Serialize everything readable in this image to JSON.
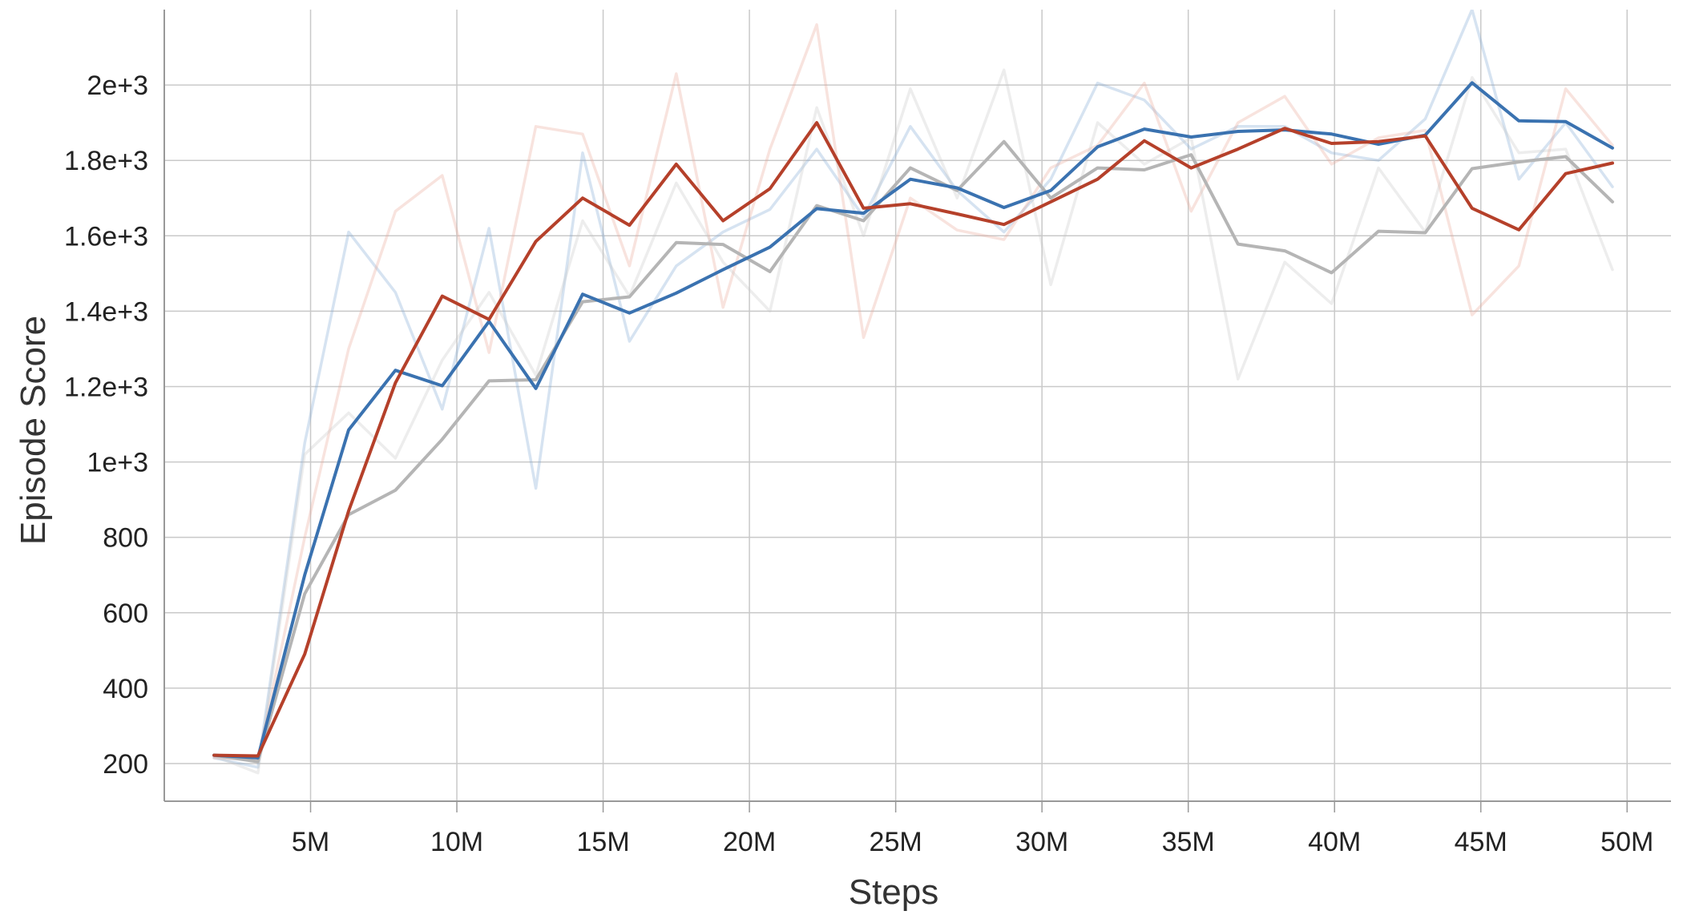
{
  "chart_data": {
    "type": "line",
    "xlabel": "Steps",
    "ylabel": "Episode Score",
    "x_tick_labels": [
      "5M",
      "10M",
      "15M",
      "20M",
      "25M",
      "30M",
      "35M",
      "40M",
      "45M",
      "50M"
    ],
    "x_tick_values": [
      5000000,
      10000000,
      15000000,
      20000000,
      25000000,
      30000000,
      35000000,
      40000000,
      45000000,
      50000000
    ],
    "y_tick_labels": [
      "200",
      "400",
      "600",
      "800",
      "1e+3",
      "1.2e+3",
      "1.4e+3",
      "1.6e+3",
      "1.8e+3",
      "2e+3"
    ],
    "y_tick_values": [
      200,
      400,
      600,
      800,
      1000,
      1200,
      1400,
      1600,
      1800,
      2000
    ],
    "xlim": [
      0,
      51500000
    ],
    "ylim": [
      100,
      2200
    ],
    "grid": true,
    "legend": "none",
    "x": [
      1700000,
      3200000,
      4800000,
      6300000,
      7900000,
      9500000,
      11100000,
      12700000,
      14300000,
      15900000,
      17500000,
      19100000,
      20700000,
      22300000,
      23900000,
      25500000,
      27100000,
      28700000,
      30300000,
      31900000,
      33500000,
      35100000,
      36700000,
      38300000,
      39900000,
      41500000,
      43100000,
      44700000,
      46300000,
      47900000,
      49500000
    ],
    "series": [
      {
        "role": "raw",
        "color": "#7fa8d4",
        "opacity": 0.32,
        "values": [
          215,
          190,
          1050,
          1610,
          1450,
          1140,
          1620,
          930,
          1820,
          1320,
          1520,
          1610,
          1670,
          1830,
          1650,
          1890,
          1720,
          1610,
          1750,
          2005,
          1960,
          1830,
          1890,
          1890,
          1820,
          1800,
          1910,
          2200,
          1750,
          1900,
          1730
        ]
      },
      {
        "role": "raw",
        "color": "#e8a898",
        "opacity": 0.32,
        "values": [
          215,
          210,
          800,
          1300,
          1665,
          1760,
          1290,
          1890,
          1870,
          1520,
          2030,
          1410,
          1830,
          2160,
          1330,
          1700,
          1615,
          1590,
          1780,
          1840,
          2005,
          1665,
          1900,
          1970,
          1790,
          1860,
          1880,
          1390,
          1520,
          1990,
          1840
        ]
      },
      {
        "role": "raw",
        "color": "#c8c8c8",
        "opacity": 0.32,
        "values": [
          220,
          175,
          1020,
          1130,
          1010,
          1270,
          1450,
          1230,
          1640,
          1440,
          1740,
          1530,
          1400,
          1940,
          1600,
          1990,
          1700,
          2040,
          1470,
          1900,
          1790,
          1860,
          1220,
          1530,
          1420,
          1780,
          1610,
          2020,
          1820,
          1830,
          1510
        ]
      },
      {
        "role": "smoothed",
        "color": "#b5b5b5",
        "opacity": 1,
        "values": [
          222,
          205,
          650,
          860,
          925,
          1060,
          1215,
          1218,
          1425,
          1438,
          1582,
          1577,
          1505,
          1680,
          1640,
          1780,
          1720,
          1850,
          1700,
          1780,
          1775,
          1815,
          1578,
          1560,
          1502,
          1612,
          1608,
          1778,
          1796,
          1810,
          1690
        ]
      },
      {
        "role": "smoothed",
        "color": "#3a72b0",
        "opacity": 1,
        "values": [
          222,
          215,
          700,
          1085,
          1243,
          1202,
          1373,
          1195,
          1445,
          1395,
          1448,
          1510,
          1570,
          1672,
          1660,
          1750,
          1727,
          1675,
          1720,
          1836,
          1883,
          1862,
          1877,
          1881,
          1870,
          1843,
          1867,
          2006,
          1905,
          1903,
          1833
        ]
      },
      {
        "role": "smoothed",
        "color": "#b5402a",
        "opacity": 1,
        "values": [
          222,
          220,
          490,
          870,
          1210,
          1440,
          1378,
          1585,
          1700,
          1628,
          1790,
          1640,
          1725,
          1900,
          1673,
          1685,
          1658,
          1630,
          1690,
          1750,
          1852,
          1780,
          1830,
          1885,
          1845,
          1850,
          1865,
          1673,
          1616,
          1765,
          1793
        ]
      }
    ]
  }
}
